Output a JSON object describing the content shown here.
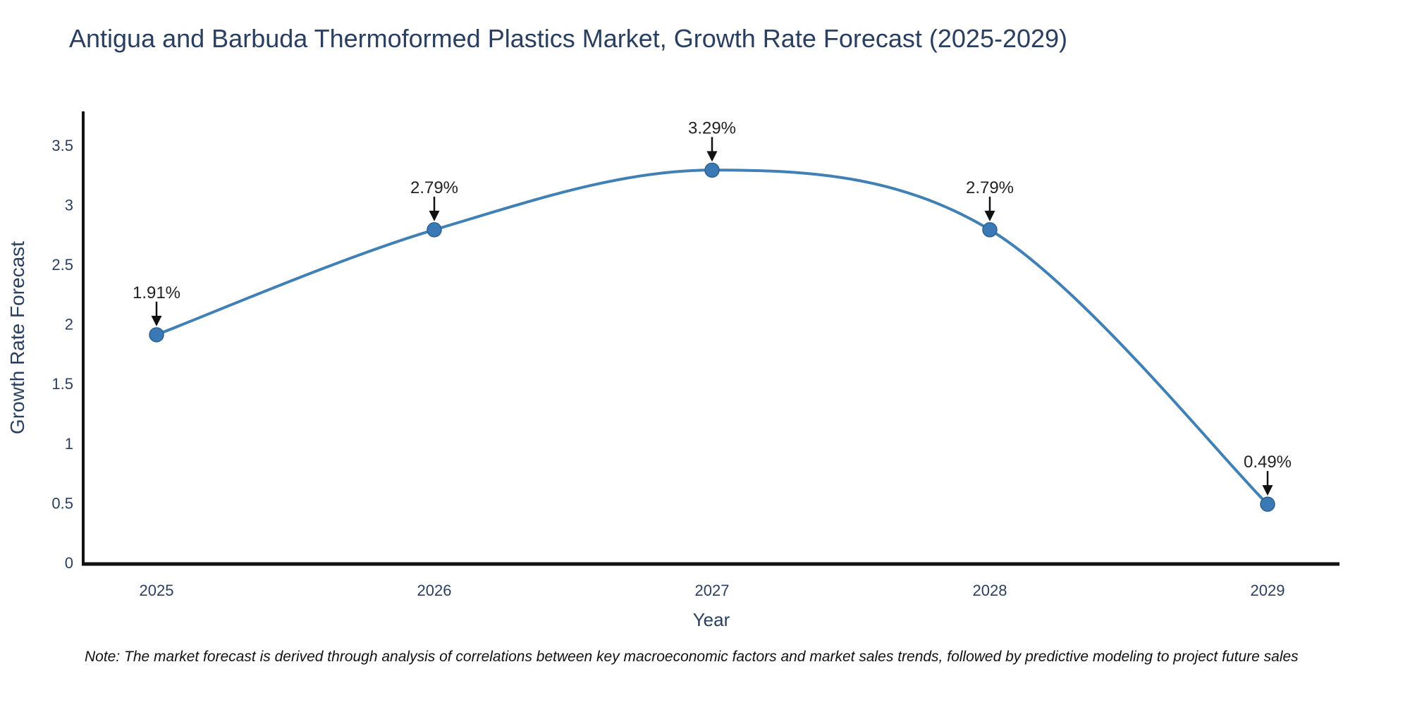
{
  "page": {
    "background": "#ffffff"
  },
  "note": "Note: The market forecast is derived through analysis of correlations between key macroeconomic factors and market sales trends, followed by predictive modeling to project future sales",
  "chart_data": {
    "type": "line",
    "title": "Antigua and Barbuda Thermoformed Plastics Market, Growth Rate Forecast (2025-2029)",
    "xlabel": "Year",
    "ylabel": "Growth Rate Forecast",
    "x": [
      2025,
      2026,
      2027,
      2028,
      2029
    ],
    "series": [
      {
        "name": "Growth Rate Forecast",
        "values": [
          1.91,
          2.79,
          3.29,
          2.79,
          0.49
        ]
      }
    ],
    "point_labels": [
      "1.91%",
      "2.79%",
      "3.29%",
      "2.79%",
      "0.49%"
    ],
    "ylim": [
      0,
      3.77
    ],
    "yticks": [
      "0",
      "0.5",
      "1",
      "1.5",
      "2",
      "2.5",
      "3",
      "3.5"
    ],
    "grid": false,
    "legend_position": "none",
    "line_shape": "spline",
    "annotation_style": "label-with-down-arrow",
    "colors": {
      "line": "#4080b5",
      "marker_fill": "#3a79b5",
      "marker_edge": "#2d618f",
      "axis": "#111111",
      "arrow": "#111111",
      "point_label_text": "#222222",
      "title_text": "#2a3f5f",
      "tick_text": "#2a3f5f",
      "axis_title_text": "#2a3f5f",
      "note_text": "#111111",
      "background": "#ffffff"
    }
  }
}
